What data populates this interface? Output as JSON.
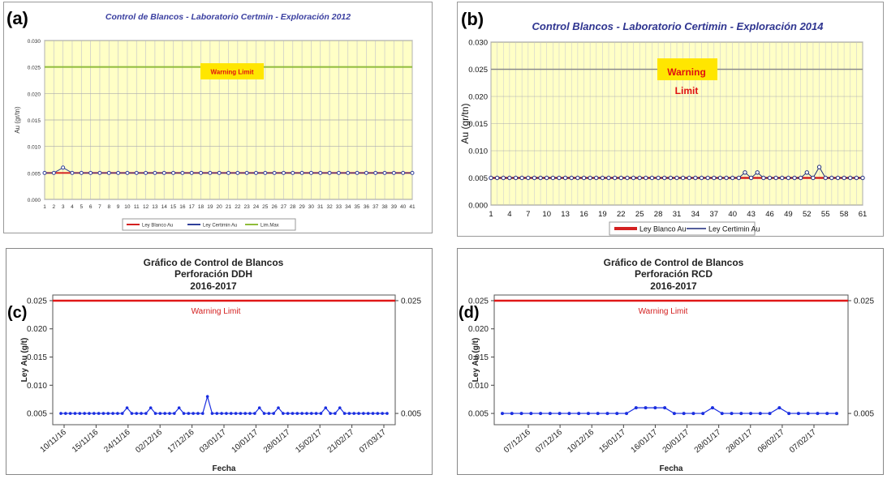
{
  "chart_data": [
    {
      "panel_label": "(a)",
      "type": "line",
      "title": "Control de Blancos - Laboratorio Certmin - Exploración 2012",
      "ylabel": "Au (gr/tn)",
      "xlabel": "",
      "ylim": [
        0,
        0.03
      ],
      "y_ticks": [
        "0.000",
        "0.005",
        "0.010",
        "0.015",
        "0.020",
        "0.025",
        "0.030"
      ],
      "x_ticks": [
        "1",
        "2",
        "3",
        "4",
        "5",
        "6",
        "7",
        "8",
        "9",
        "10",
        "11",
        "12",
        "13",
        "14",
        "15",
        "16",
        "17",
        "18",
        "19",
        "20",
        "21",
        "22",
        "23",
        "24",
        "25",
        "26",
        "27",
        "28",
        "29",
        "30",
        "31",
        "32",
        "33",
        "34",
        "35",
        "36",
        "37",
        "38",
        "39",
        "40",
        "41"
      ],
      "x": [
        1,
        2,
        3,
        4,
        5,
        6,
        7,
        8,
        9,
        10,
        11,
        12,
        13,
        14,
        15,
        16,
        17,
        18,
        19,
        20,
        21,
        22,
        23,
        24,
        25,
        26,
        27,
        28,
        29,
        30,
        31,
        32,
        33,
        34,
        35,
        36,
        37,
        38,
        39,
        40,
        41
      ],
      "series": [
        {
          "name": "Ley Blanco Au",
          "color": "#d42020",
          "values": [
            0.005,
            0.005,
            0.005,
            0.005,
            0.005,
            0.005,
            0.005,
            0.005,
            0.005,
            0.005,
            0.005,
            0.005,
            0.005,
            0.005,
            0.005,
            0.005,
            0.005,
            0.005,
            0.005,
            0.005,
            0.005,
            0.005,
            0.005,
            0.005,
            0.005,
            0.005,
            0.005,
            0.005,
            0.005,
            0.005,
            0.005,
            0.005,
            0.005,
            0.005,
            0.005,
            0.005,
            0.005,
            0.005,
            0.005,
            0.005,
            0.005
          ]
        },
        {
          "name": "Ley Certimin Au",
          "color": "#2f3f9a",
          "values": [
            0.005,
            0.005,
            0.006,
            0.005,
            0.005,
            0.005,
            0.005,
            0.005,
            0.005,
            0.005,
            0.005,
            0.005,
            0.005,
            0.005,
            0.005,
            0.005,
            0.005,
            0.005,
            0.005,
            0.005,
            0.005,
            0.005,
            0.005,
            0.005,
            0.005,
            0.005,
            0.005,
            0.005,
            0.005,
            0.005,
            0.005,
            0.005,
            0.005,
            0.005,
            0.005,
            0.005,
            0.005,
            0.005,
            0.005,
            0.005,
            0.005
          ]
        },
        {
          "name": "Lim.Max",
          "color": "#8fbc3a",
          "values": [
            0.025,
            0.025,
            0.025,
            0.025,
            0.025,
            0.025,
            0.025,
            0.025,
            0.025,
            0.025,
            0.025,
            0.025,
            0.025,
            0.025,
            0.025,
            0.025,
            0.025,
            0.025,
            0.025,
            0.025,
            0.025,
            0.025,
            0.025,
            0.025,
            0.025,
            0.025,
            0.025,
            0.025,
            0.025,
            0.025,
            0.025,
            0.025,
            0.025,
            0.025,
            0.025,
            0.025,
            0.025,
            0.025,
            0.025,
            0.025,
            0.025
          ]
        }
      ],
      "annotation": "Warning Limit",
      "grid": true,
      "legend_position": "bottom"
    },
    {
      "panel_label": "(b)",
      "type": "line",
      "title": "Control Blancos - Laboratorio Certimin - Exploración 2014",
      "ylabel": "Au (gr/tn)",
      "xlabel": "",
      "ylim": [
        0,
        0.03
      ],
      "y_ticks": [
        "0.000",
        "0.005",
        "0.010",
        "0.015",
        "0.020",
        "0.025",
        "0.030"
      ],
      "x_ticks": [
        "1",
        "4",
        "7",
        "10",
        "13",
        "16",
        "19",
        "22",
        "25",
        "28",
        "31",
        "34",
        "37",
        "40",
        "43",
        "46",
        "49",
        "52",
        "55",
        "58",
        "61"
      ],
      "x_range": [
        1,
        61
      ],
      "series": [
        {
          "name": "Ley Blanco Au",
          "color": "#d42020",
          "constant": 0.005
        },
        {
          "name": "Ley Certimin Au",
          "color": "#1d2a7a",
          "constant": 0.005,
          "peaks": [
            [
              42,
              0.006
            ],
            [
              44,
              0.006
            ],
            [
              52,
              0.006
            ],
            [
              54,
              0.007
            ]
          ]
        }
      ],
      "reference_line": 0.025,
      "annotation": "Warning Limit",
      "grid": true,
      "legend_position": "bottom"
    },
    {
      "panel_label": "(c)",
      "type": "line",
      "title": "Gráfico de Control de Blancos",
      "subtitle": "Perforación DDH",
      "period": "2016-2017",
      "ylabel": "Ley Au (g/t)",
      "xlabel": "Fecha",
      "ylim": [
        0.003,
        0.026
      ],
      "y_ticks": [
        "0.005",
        "0.010",
        "0.015",
        "0.020",
        "0.025"
      ],
      "right_ticks": [
        "0.025",
        "0.005"
      ],
      "x_ticks": [
        "10/11/16",
        "15/11/16",
        "24/11/16",
        "02/12/16",
        "17/12/16",
        "03/01/17",
        "10/01/17",
        "28/01/17",
        "15/02/17",
        "21/02/17",
        "07/03/17"
      ],
      "n_points": 70,
      "series": [
        {
          "name": "Ley Au",
          "color": "#1a2ee0",
          "base": 0.005,
          "peaks": [
            [
              14,
              0.006
            ],
            [
              19,
              0.006
            ],
            [
              25,
              0.006
            ],
            [
              31,
              0.008
            ],
            [
              42,
              0.006
            ],
            [
              46,
              0.006
            ],
            [
              56,
              0.006
            ],
            [
              59,
              0.006
            ]
          ]
        }
      ],
      "reference_line": 0.025,
      "annotation": "Warning Limit"
    },
    {
      "panel_label": "(d)",
      "type": "line",
      "title": "Gráfico de Control de Blancos",
      "subtitle": "Perforación RCD",
      "period": "2016-2017",
      "ylabel": "Ley Au (g/t)",
      "xlabel": "Fecha",
      "ylim": [
        0.003,
        0.026
      ],
      "y_ticks": [
        "0.005",
        "0.010",
        "0.015",
        "0.020",
        "0.025"
      ],
      "right_ticks": [
        "0.025",
        "0.005"
      ],
      "x_ticks": [
        "07/12/16",
        "07/12/16",
        "10/12/16",
        "15/01/17",
        "16/01/17",
        "20/01/17",
        "28/01/17",
        "28/01/17",
        "06/02/17",
        "07/02/17"
      ],
      "series": [
        {
          "name": "Ley Au",
          "color": "#1a2ee0",
          "values": [
            0.005,
            0.005,
            0.005,
            0.005,
            0.005,
            0.005,
            0.005,
            0.005,
            0.005,
            0.005,
            0.005,
            0.005,
            0.005,
            0.005,
            0.006,
            0.006,
            0.006,
            0.006,
            0.005,
            0.005,
            0.005,
            0.005,
            0.006,
            0.005,
            0.005,
            0.005,
            0.005,
            0.005,
            0.005,
            0.006,
            0.005,
            0.005,
            0.005,
            0.005,
            0.005,
            0.005
          ]
        }
      ],
      "reference_line": 0.025,
      "annotation": "Warning Limit"
    }
  ]
}
